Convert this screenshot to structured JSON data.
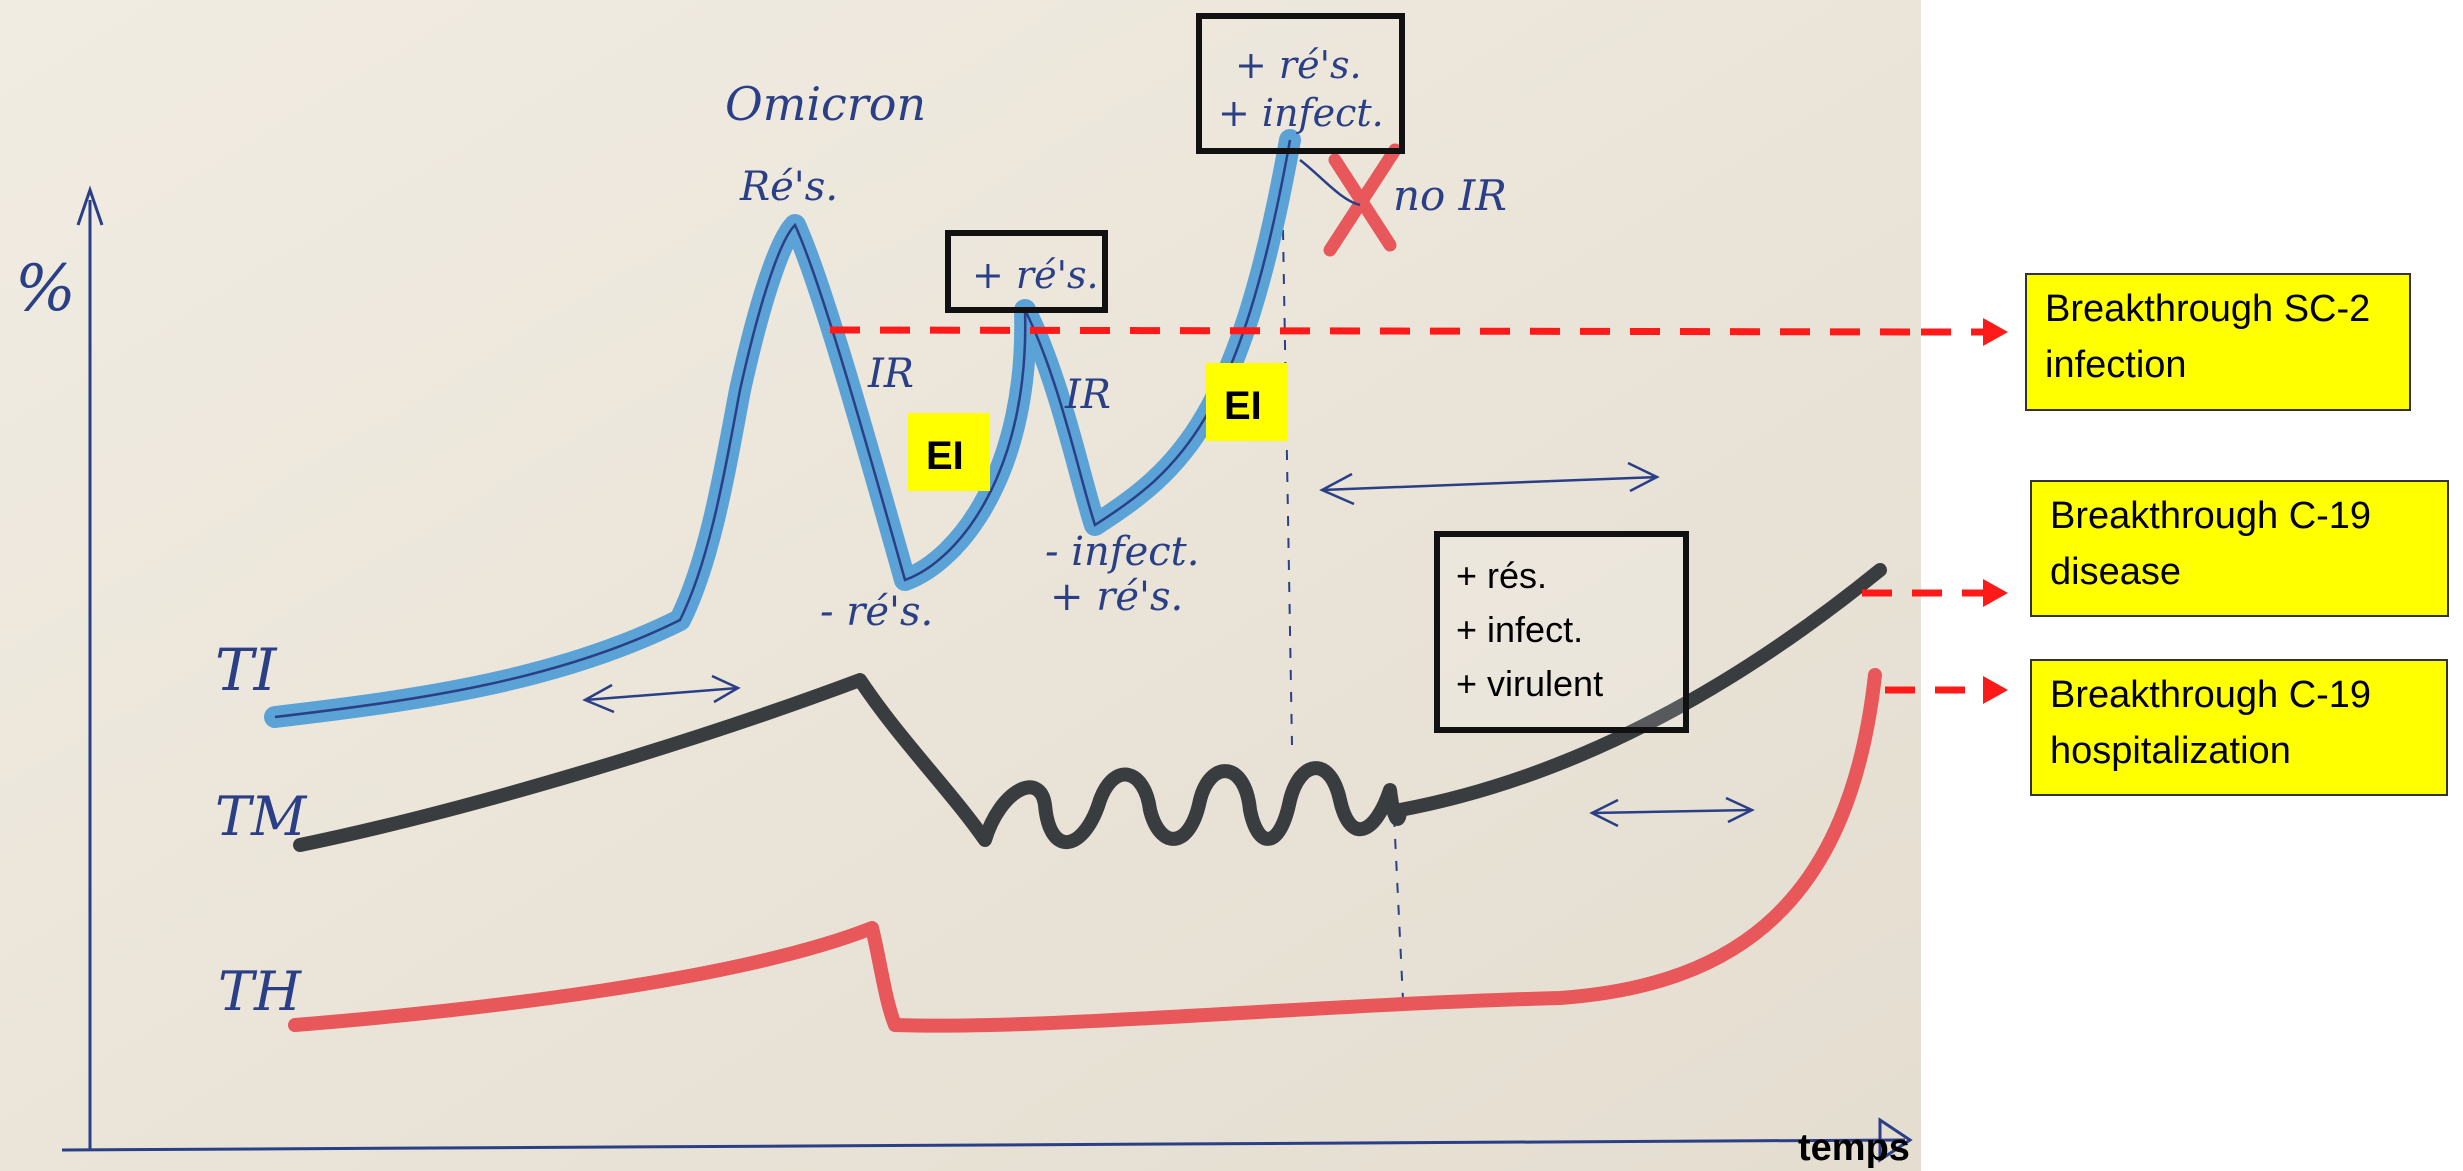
{
  "colors": {
    "paper": "#ece6da",
    "ink": "#2a3f86",
    "ti_line": "#4b9ad6",
    "tm_line": "#3a3d40",
    "th_line": "#e8575a",
    "arrow_red": "#ff1a1a",
    "callout_bg": "#ffff00"
  },
  "axes": {
    "y_label": "%",
    "x_label": "temps"
  },
  "curves": {
    "ti": "TI",
    "tm": "TM",
    "th": "TH"
  },
  "handwritten": {
    "omicron": "Omicron",
    "res_peak": "Ré's.",
    "ir_1": "IR",
    "ir_2": "IR",
    "minus_res": "- ré's.",
    "minus_infect": "- infect.",
    "plus_res_low": "+ ré's.",
    "no_ir": "no IR"
  },
  "boxes": {
    "plus_res": "+ ré's.",
    "plus_res_infect": [
      "+ ré's.",
      "+ infect."
    ],
    "variant_traits": [
      "+ rés.",
      "+ infect.",
      "+ virulent"
    ]
  },
  "tags": {
    "ei_1": "EI",
    "ei_2": "EI"
  },
  "callouts": {
    "infection": [
      "Breakthrough SC-2",
      "infection"
    ],
    "disease": [
      "Breakthrough C-19",
      "disease"
    ],
    "hospitalization": [
      "Breakthrough C-19",
      "hospitalization"
    ]
  }
}
